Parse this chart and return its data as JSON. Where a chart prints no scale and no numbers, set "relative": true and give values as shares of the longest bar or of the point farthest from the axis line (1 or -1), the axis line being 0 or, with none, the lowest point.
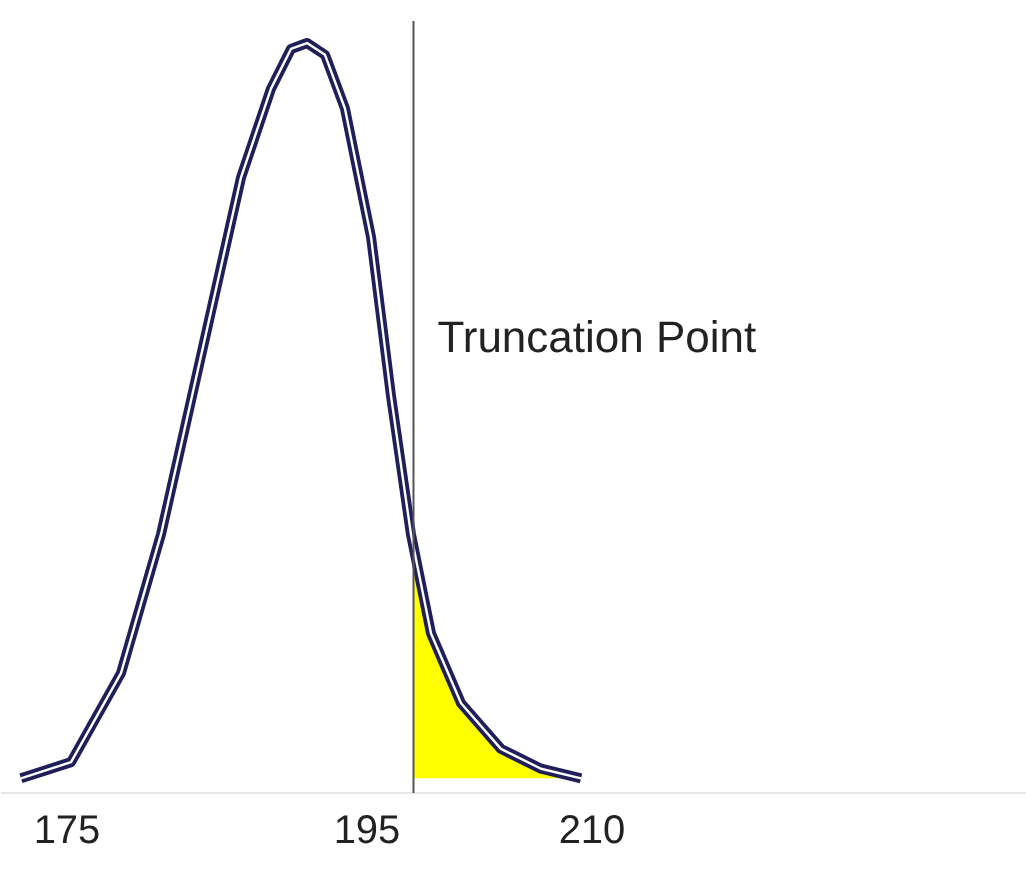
{
  "chart_data": {
    "type": "line",
    "relative": true,
    "xlim": [
      170.6,
      239
    ],
    "xticks": [
      175,
      195,
      210
    ],
    "grid": false,
    "tick_labels": "x",
    "series": [
      {
        "color": "#1f1f5a",
        "x": [
          171.93,
          175.27,
          178.6,
          181.27,
          183.93,
          186.6,
          188.6,
          189.93,
          191,
          192.2,
          193.53,
          195.27,
          196.6,
          197.93,
          199.27,
          201.27,
          203.93,
          206.6,
          209.27
        ],
        "values": [
          0,
          0.022,
          0.143,
          0.332,
          0.574,
          0.817,
          0.938,
          0.992,
          1,
          0.984,
          0.911,
          0.736,
          0.52,
          0.332,
          0.197,
          0.102,
          0.04,
          0.013,
          0
        ]
      },
      {
        "type": "area",
        "color": "#ffff00",
        "x": [
          198.1,
          199.27,
          201.27,
          203.93,
          206.6,
          209.27
        ],
        "values": [
          0.33,
          0.197,
          0.102,
          0.04,
          0.013,
          0
        ]
      }
    ],
    "ref_lines": [
      {
        "axis": "x",
        "value": 198.1,
        "label": "Truncation Point",
        "color": "#555555"
      }
    ]
  }
}
